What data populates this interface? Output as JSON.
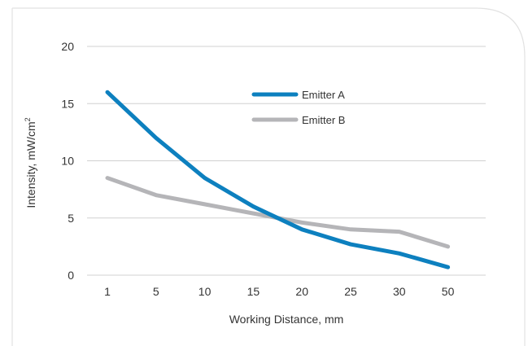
{
  "chart_data": {
    "type": "line",
    "title": "",
    "xlabel": "Working Distance, mm",
    "ylabel": "Intensity, mW/cm",
    "ylabel_superscript": "2",
    "categories": [
      "1",
      "5",
      "10",
      "15",
      "20",
      "25",
      "30",
      "50"
    ],
    "yticks": [
      "0",
      "5",
      "10",
      "15",
      "20"
    ],
    "ylim": [
      0,
      20
    ],
    "grid": true,
    "legend_position": "top-right",
    "series": [
      {
        "name": "Emitter A",
        "color": "#0d80bf",
        "values": [
          16,
          12,
          8.5,
          6,
          4,
          2.7,
          1.9,
          0.7
        ]
      },
      {
        "name": "Emitter B",
        "color": "#b5b5b8",
        "values": [
          8.5,
          7,
          6.2,
          5.4,
          4.6,
          4,
          3.8,
          2.5
        ]
      }
    ]
  }
}
